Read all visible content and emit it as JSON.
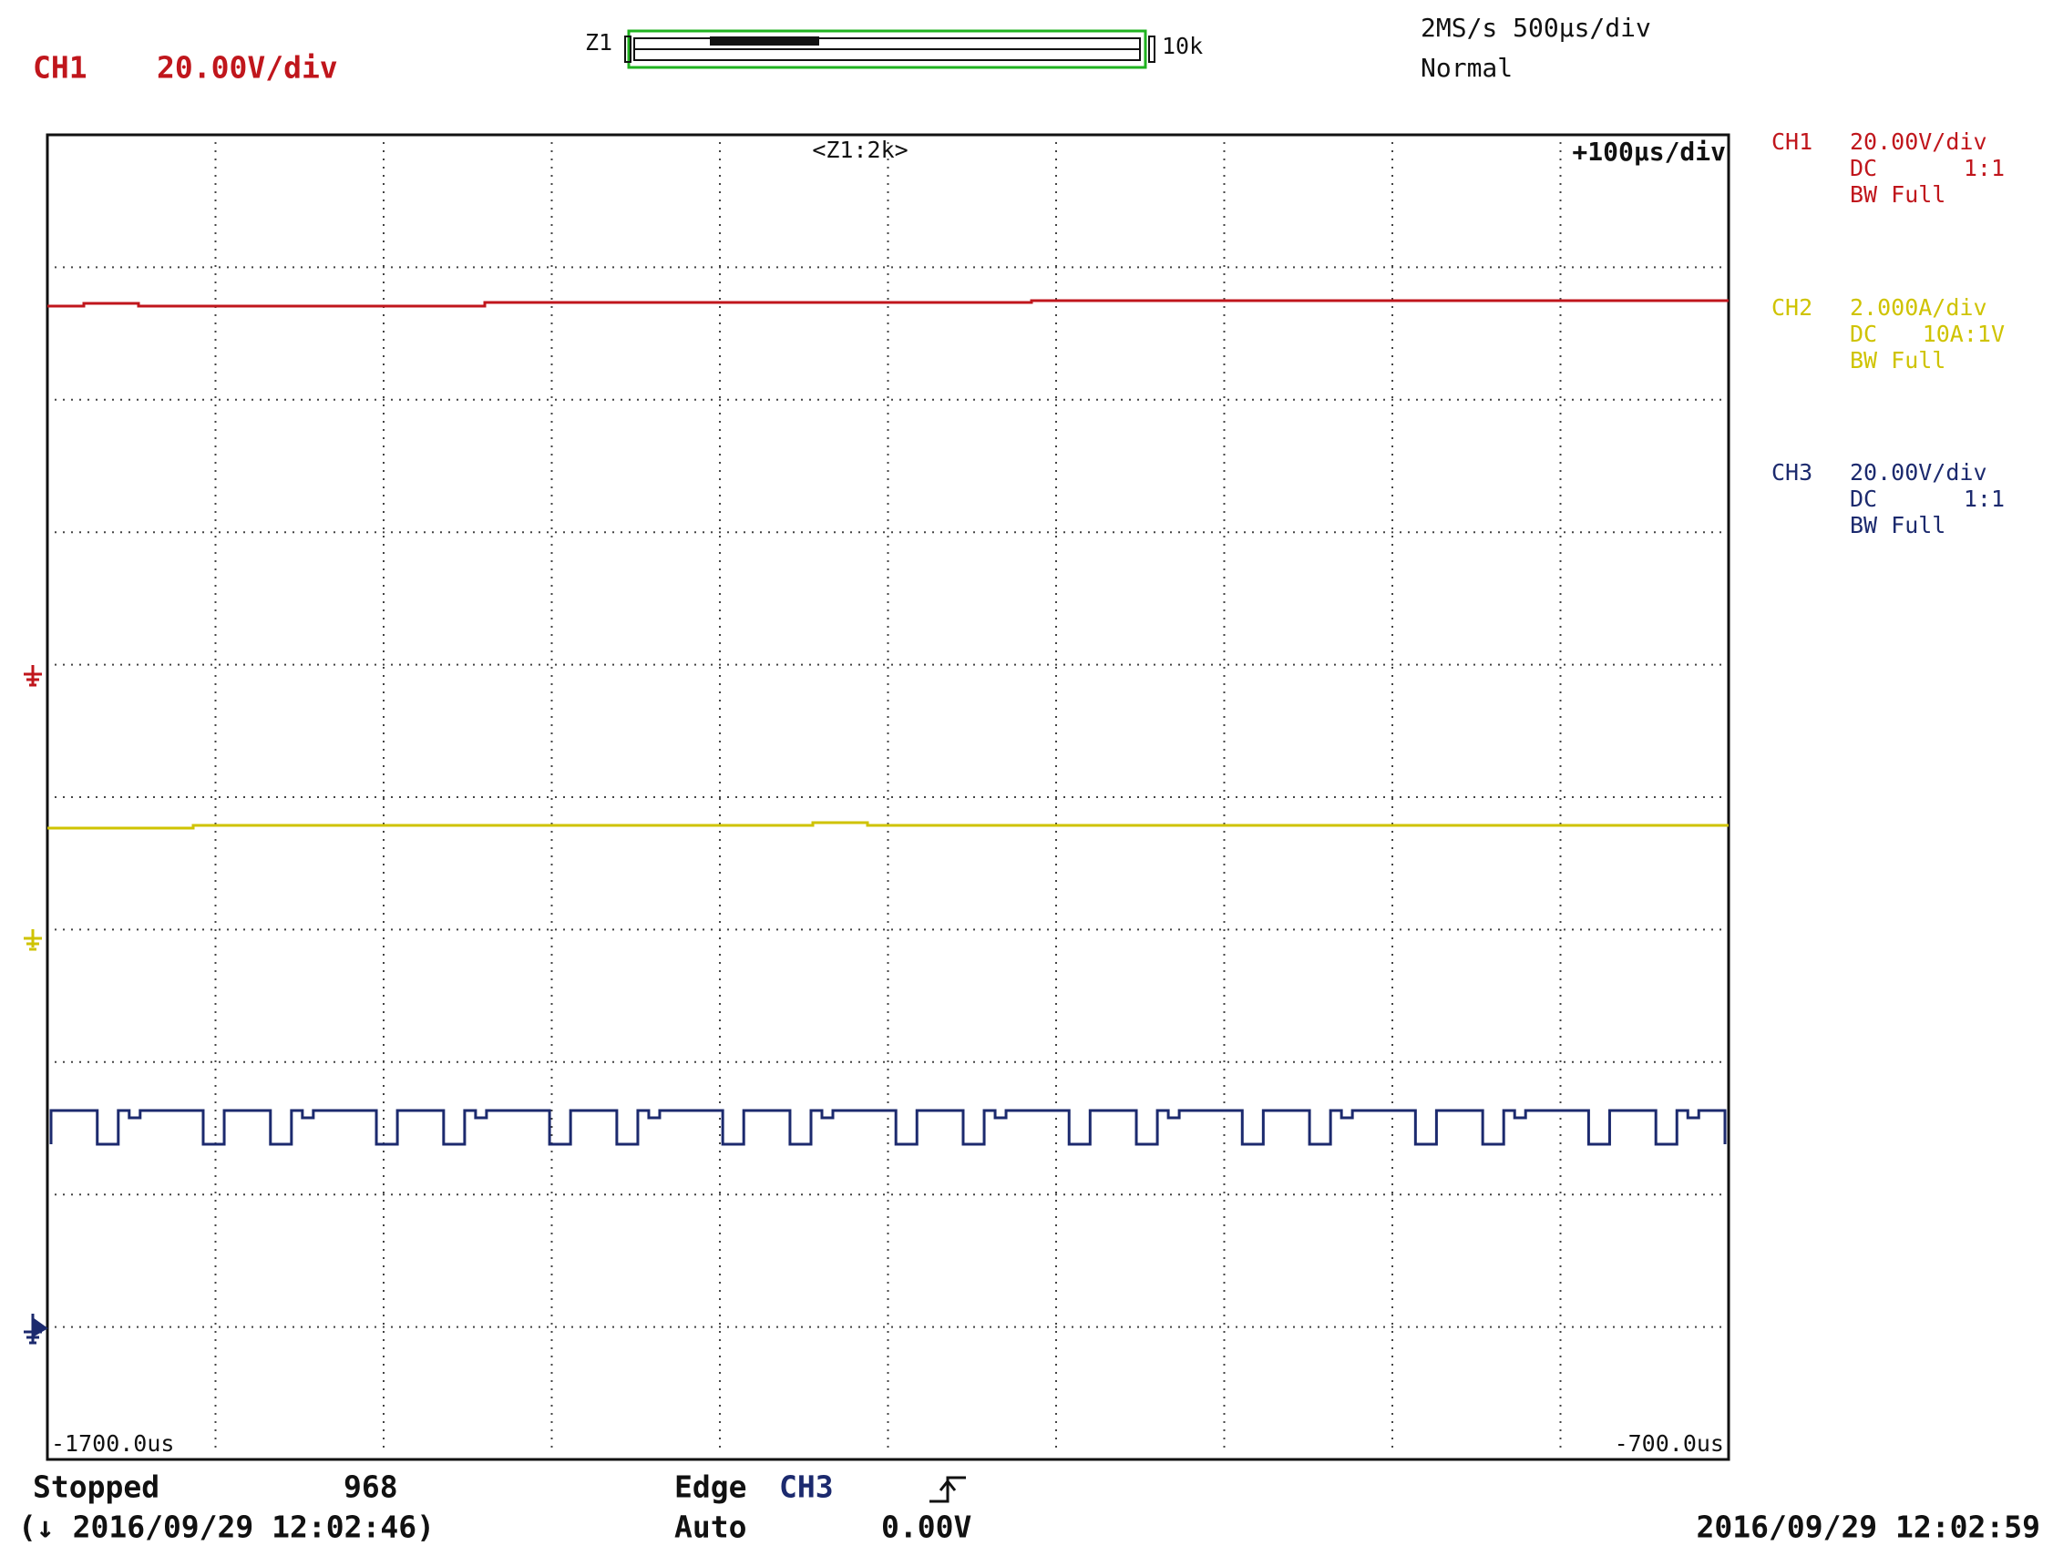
{
  "header": {
    "channel": "CH1",
    "scale": "20.00V/div",
    "zoom_left": "Z1",
    "zoom_right": "10k",
    "sample_rate": "2MS/s 500µs/div",
    "mode": "Normal"
  },
  "screen": {
    "zoom": "<Z1:2k>",
    "zoom_scale": "+100µs/div",
    "time_start": "-1700.0us",
    "time_end": "-700.0us"
  },
  "channels": [
    {
      "name": "CH1",
      "scale": "20.00V/div",
      "coupling": "DC",
      "probe": "1:1",
      "bandwidth": "BW Full"
    },
    {
      "name": "CH2",
      "scale": "2.000A/div",
      "coupling": "DC",
      "probe": "10A:1V",
      "bandwidth": "BW Full"
    },
    {
      "name": "CH3",
      "scale": "20.00V/div",
      "coupling": "DC",
      "probe": "1:1",
      "bandwidth": "BW Full"
    }
  ],
  "footer": {
    "status": "Stopped",
    "count": "968",
    "trigger_type": "Edge",
    "trigger_source": "CH3",
    "trigger_mode": "Auto",
    "trigger_level": "0.00V",
    "start_time": "(↓ 2016/09/29 12:02:46)",
    "end_time": "2016/09/29 12:02:59"
  }
}
